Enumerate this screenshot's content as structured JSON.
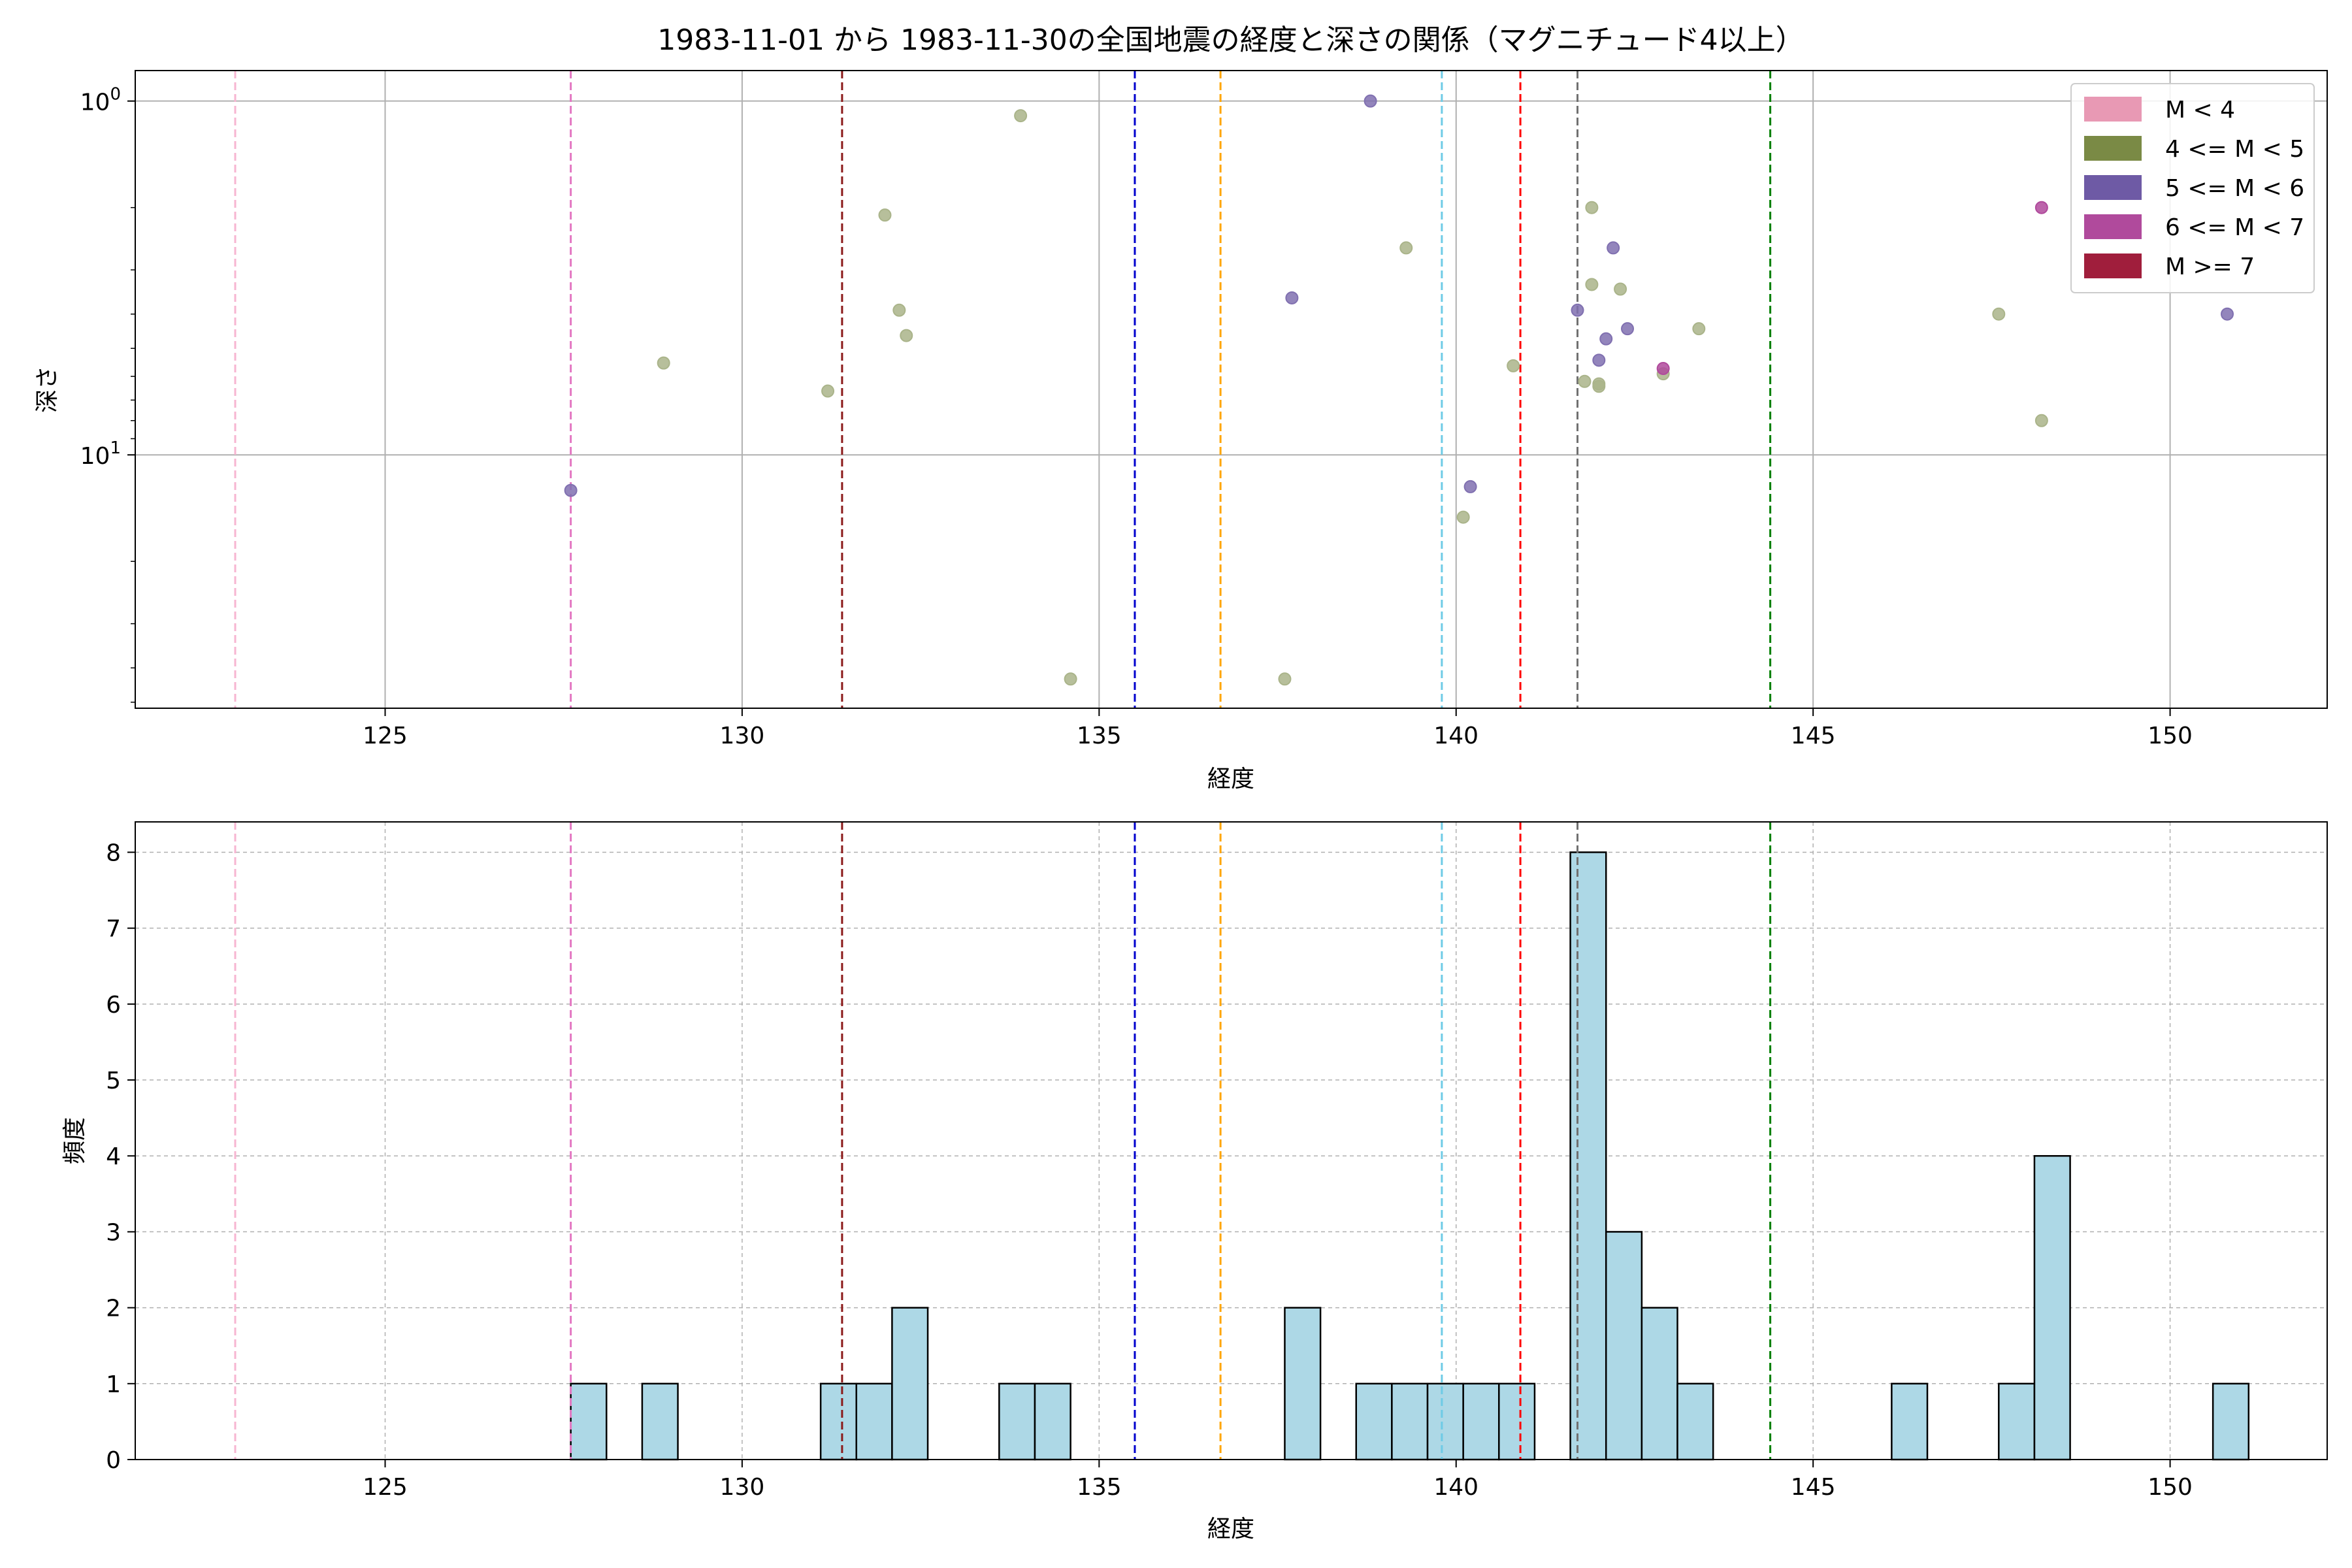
{
  "chart_data": [
    {
      "type": "scatter",
      "title": "1983-11-01 から 1983-11-30の全国地震の経度と深さの関係（マグニチュード4以上）",
      "xlabel": "経度",
      "ylabel": "深さ",
      "xlim": [
        121.5,
        152.2
      ],
      "ylim": [
        52,
        0.82
      ],
      "yscale": "log",
      "y_inverted": true,
      "grid": true,
      "xticks": [
        125,
        130,
        135,
        140,
        145,
        150
      ],
      "yticks": [
        {
          "value": 1,
          "label": "10",
          "sup": "0"
        },
        {
          "value": 10,
          "label": "10",
          "sup": "1"
        }
      ],
      "legend": {
        "placement": "top-right",
        "entries": [
          {
            "label": "M < 4",
            "color": "#e899b4"
          },
          {
            "label": "4 <= M < 5",
            "color": "#7a8a45"
          },
          {
            "label": "5 <= M < 6",
            "color": "#6e5aa5"
          },
          {
            "label": "6 <= M < 7",
            "color": "#b04a9c"
          },
          {
            "label": "M >= 7",
            "color": "#a01e3c"
          }
        ]
      },
      "series": [
        {
          "class": "4 <= M < 5",
          "color": "#aab48a",
          "points": [
            [
              128.9,
              5.5
            ],
            [
              131.2,
              6.6
            ],
            [
              132.0,
              2.1
            ],
            [
              132.2,
              3.9
            ],
            [
              132.3,
              4.6
            ],
            [
              133.9,
              1.1
            ],
            [
              134.6,
              43
            ],
            [
              137.6,
              43
            ],
            [
              139.3,
              2.6
            ],
            [
              140.1,
              15.0
            ],
            [
              140.8,
              5.6
            ],
            [
              141.8,
              6.2
            ],
            [
              141.9,
              2.0
            ],
            [
              141.9,
              3.3
            ],
            [
              142.0,
              6.4
            ],
            [
              142.0,
              6.3
            ],
            [
              142.3,
              3.4
            ],
            [
              142.9,
              5.9
            ],
            [
              143.4,
              4.4
            ],
            [
              147.6,
              4.0
            ],
            [
              148.2,
              8.0
            ]
          ]
        },
        {
          "class": "5 <= M < 6",
          "color": "#8070b0",
          "points": [
            [
              127.6,
              12.6
            ],
            [
              137.7,
              3.6
            ],
            [
              138.8,
              1.0
            ],
            [
              140.2,
              12.3
            ],
            [
              141.7,
              3.9
            ],
            [
              142.0,
              5.4
            ],
            [
              142.1,
              4.7
            ],
            [
              142.2,
              2.6
            ],
            [
              142.4,
              4.4
            ],
            [
              150.8,
              4.0
            ]
          ]
        },
        {
          "class": "6 <= M < 7",
          "color": "#b04a9c",
          "points": [
            [
              142.9,
              5.7
            ],
            [
              148.2,
              2.0
            ]
          ]
        }
      ],
      "vlines": [
        {
          "x": 122.9,
          "color": "#f7b6d2"
        },
        {
          "x": 127.6,
          "color": "#e377c2"
        },
        {
          "x": 131.4,
          "color": "#8b1a1a"
        },
        {
          "x": 135.5,
          "color": "#0000cd"
        },
        {
          "x": 136.7,
          "color": "#ffa500"
        },
        {
          "x": 139.8,
          "color": "#6ecbe6"
        },
        {
          "x": 140.9,
          "color": "#ff0000"
        },
        {
          "x": 141.7,
          "color": "#707070"
        },
        {
          "x": 144.4,
          "color": "#008000"
        }
      ]
    },
    {
      "type": "bar",
      "title": "",
      "xlabel": "経度",
      "ylabel": "頻度",
      "xlim": [
        121.5,
        152.2
      ],
      "ylim": [
        0,
        8.4
      ],
      "grid": true,
      "bar_color": "#add8e6",
      "xticks": [
        125,
        130,
        135,
        140,
        145,
        150
      ],
      "yticks": [
        0,
        1,
        2,
        3,
        4,
        5,
        6,
        7,
        8
      ],
      "bins": [
        {
          "x0": 127.6,
          "x1": 128.1,
          "value": 1
        },
        {
          "x0": 128.6,
          "x1": 129.1,
          "value": 1
        },
        {
          "x0": 131.1,
          "x1": 131.6,
          "value": 1
        },
        {
          "x0": 131.6,
          "x1": 132.1,
          "value": 1
        },
        {
          "x0": 132.1,
          "x1": 132.6,
          "value": 2
        },
        {
          "x0": 133.6,
          "x1": 134.1,
          "value": 1
        },
        {
          "x0": 134.1,
          "x1": 134.6,
          "value": 1
        },
        {
          "x0": 137.6,
          "x1": 138.1,
          "value": 2
        },
        {
          "x0": 138.6,
          "x1": 139.1,
          "value": 1
        },
        {
          "x0": 139.1,
          "x1": 139.6,
          "value": 1
        },
        {
          "x0": 139.6,
          "x1": 140.1,
          "value": 1
        },
        {
          "x0": 140.1,
          "x1": 140.6,
          "value": 1
        },
        {
          "x0": 140.6,
          "x1": 141.1,
          "value": 1
        },
        {
          "x0": 141.6,
          "x1": 142.1,
          "value": 8
        },
        {
          "x0": 142.1,
          "x1": 142.6,
          "value": 3
        },
        {
          "x0": 142.6,
          "x1": 143.1,
          "value": 2
        },
        {
          "x0": 143.1,
          "x1": 143.6,
          "value": 1
        },
        {
          "x0": 146.1,
          "x1": 146.6,
          "value": 1
        },
        {
          "x0": 147.6,
          "x1": 148.1,
          "value": 1
        },
        {
          "x0": 148.1,
          "x1": 148.6,
          "value": 4
        },
        {
          "x0": 150.6,
          "x1": 151.1,
          "value": 1
        }
      ],
      "vlines": [
        {
          "x": 122.9,
          "color": "#f7b6d2"
        },
        {
          "x": 127.6,
          "color": "#e377c2"
        },
        {
          "x": 131.4,
          "color": "#8b1a1a"
        },
        {
          "x": 135.5,
          "color": "#0000cd"
        },
        {
          "x": 136.7,
          "color": "#ffa500"
        },
        {
          "x": 139.8,
          "color": "#6ecbe6"
        },
        {
          "x": 140.9,
          "color": "#ff0000"
        },
        {
          "x": 141.7,
          "color": "#707070"
        },
        {
          "x": 144.4,
          "color": "#008000"
        }
      ]
    }
  ]
}
